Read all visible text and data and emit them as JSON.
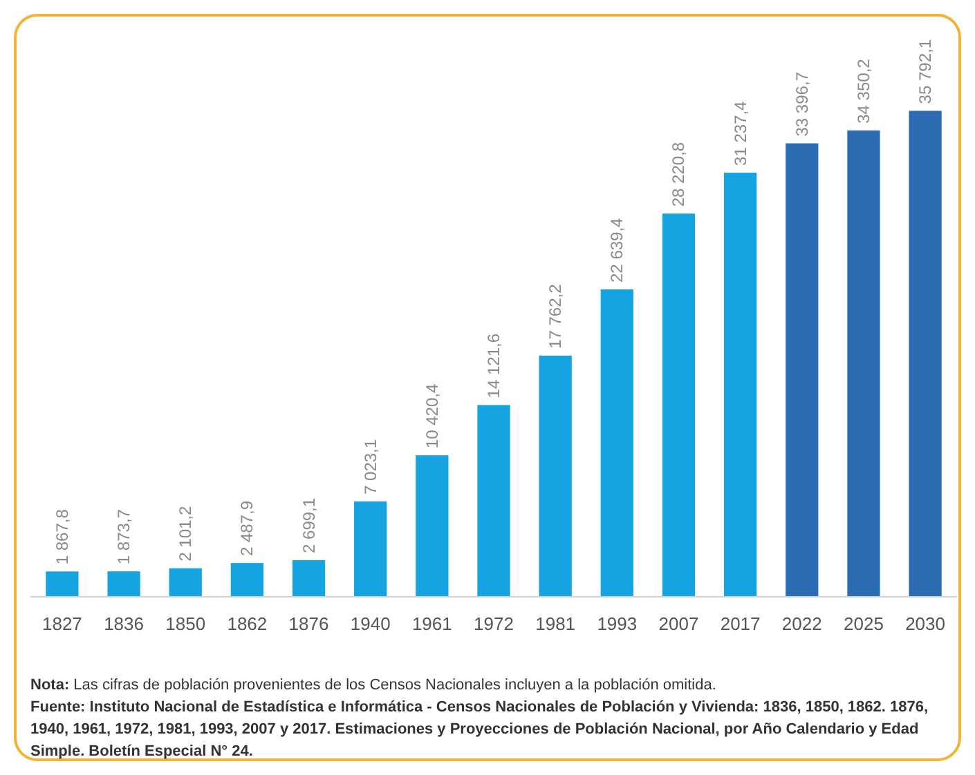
{
  "chart_data": {
    "type": "bar",
    "categories": [
      "1827",
      "1836",
      "1850",
      "1862",
      "1876",
      "1940",
      "1961",
      "1972",
      "1981",
      "1993",
      "2007",
      "2017",
      "2022",
      "2025",
      "2030"
    ],
    "values": [
      1867.8,
      1873.7,
      2101.2,
      2487.9,
      2699.1,
      7023.1,
      10420.4,
      14121.6,
      17762.2,
      22639.4,
      28220.8,
      31237.4,
      33396.7,
      34350.2,
      35792.1
    ],
    "value_labels": [
      "1 867,8",
      "1 873,7",
      "2 101,2",
      "2 487,9",
      "2 699,1",
      "7 023,1",
      "10 420,4",
      "14 121,6",
      "17 762,2",
      "22 639,4",
      "28 220,8",
      "31 237,4",
      "33 396,7",
      "34 350,2",
      "35 792,1"
    ],
    "colors": [
      "#16a3e2",
      "#16a3e2",
      "#16a3e2",
      "#16a3e2",
      "#16a3e2",
      "#16a3e2",
      "#16a3e2",
      "#16a3e2",
      "#16a3e2",
      "#16a3e2",
      "#16a3e2",
      "#16a3e2",
      "#2b6cb3",
      "#2b6cb3",
      "#2b6cb3"
    ],
    "annotations": [
      "Nota: Las cifras de población provenientes de los Censos Nacionales incluyen a la población omitida.",
      "Fuente: Instituto Nacional de Estadística e Informática - Censos Nacionales de Población y Vivienda: 1836, 1850, 1862. 1876, 1940, 1961, 1972, 1981, 1993, 2007 y 2017. Estimaciones y Proyecciones de Población Nacional, por Año Calendario y Edad Simple. Boletín Especial N° 24."
    ]
  }
}
